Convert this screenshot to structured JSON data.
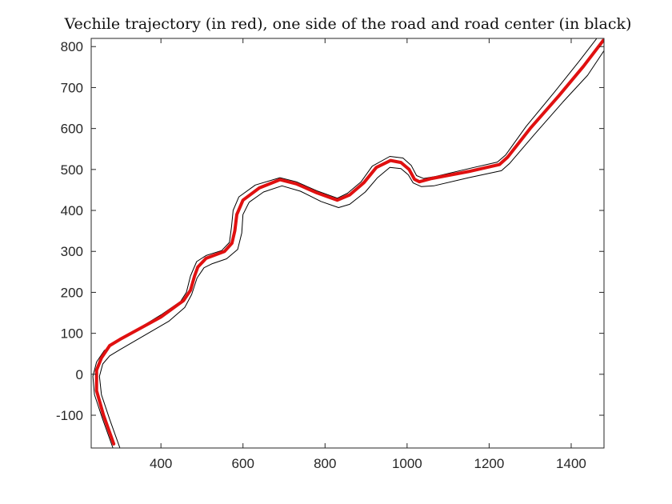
{
  "chart_data": {
    "type": "line",
    "title": "Vechile trajectory (in red), one side of the road and road center (in black)",
    "xlabel": "",
    "ylabel": "",
    "xlim": [
      230,
      1480
    ],
    "ylim": [
      -180,
      820
    ],
    "xticks": [
      400,
      600,
      800,
      1000,
      1200,
      1400
    ],
    "yticks": [
      -100,
      0,
      100,
      200,
      300,
      400,
      500,
      600,
      700,
      800
    ],
    "grid": false,
    "series": [
      {
        "color": "#e01010",
        "line_width": 4,
        "points": [
          [
            285,
            -170
          ],
          [
            260,
            -100
          ],
          [
            243,
            -40
          ],
          [
            243,
            10
          ],
          [
            255,
            40
          ],
          [
            275,
            70
          ],
          [
            300,
            85
          ],
          [
            400,
            140
          ],
          [
            455,
            180
          ],
          [
            472,
            205
          ],
          [
            482,
            240
          ],
          [
            490,
            262
          ],
          [
            510,
            283
          ],
          [
            555,
            300
          ],
          [
            573,
            320
          ],
          [
            580,
            350
          ],
          [
            585,
            390
          ],
          [
            600,
            425
          ],
          [
            640,
            455
          ],
          [
            690,
            475
          ],
          [
            730,
            465
          ],
          [
            780,
            443
          ],
          [
            830,
            425
          ],
          [
            860,
            438
          ],
          [
            895,
            468
          ],
          [
            925,
            505
          ],
          [
            960,
            522
          ],
          [
            985,
            517
          ],
          [
            1005,
            500
          ],
          [
            1018,
            476
          ],
          [
            1030,
            470
          ],
          [
            1060,
            478
          ],
          [
            1150,
            495
          ],
          [
            1225,
            512
          ],
          [
            1245,
            530
          ],
          [
            1300,
            600
          ],
          [
            1370,
            680
          ],
          [
            1430,
            752
          ],
          [
            1478,
            815
          ]
        ]
      },
      {
        "color": "#000000",
        "line_width": 1,
        "points": [
          [
            300,
            -180
          ],
          [
            275,
            -110
          ],
          [
            255,
            -50
          ],
          [
            250,
            -5
          ],
          [
            258,
            25
          ],
          [
            275,
            45
          ],
          [
            300,
            60
          ],
          [
            420,
            130
          ],
          [
            458,
            163
          ],
          [
            475,
            195
          ],
          [
            488,
            235
          ],
          [
            505,
            260
          ],
          [
            525,
            270
          ],
          [
            560,
            282
          ],
          [
            587,
            305
          ],
          [
            597,
            345
          ],
          [
            600,
            390
          ],
          [
            615,
            420
          ],
          [
            650,
            445
          ],
          [
            695,
            460
          ],
          [
            740,
            447
          ],
          [
            790,
            422
          ],
          [
            833,
            407
          ],
          [
            860,
            415
          ],
          [
            898,
            445
          ],
          [
            928,
            480
          ],
          [
            958,
            505
          ],
          [
            985,
            502
          ],
          [
            1003,
            487
          ],
          [
            1015,
            467
          ],
          [
            1035,
            458
          ],
          [
            1065,
            460
          ],
          [
            1150,
            480
          ],
          [
            1230,
            497
          ],
          [
            1250,
            515
          ],
          [
            1310,
            585
          ],
          [
            1380,
            665
          ],
          [
            1440,
            730
          ],
          [
            1480,
            790
          ]
        ]
      },
      {
        "color": "#000000",
        "line_width": 1,
        "points": [
          [
            283,
            -180
          ],
          [
            258,
            -110
          ],
          [
            238,
            -50
          ],
          [
            234,
            -5
          ],
          [
            243,
            30
          ],
          [
            262,
            58
          ],
          [
            285,
            75
          ],
          [
            400,
            145
          ],
          [
            448,
            178
          ],
          [
            462,
            200
          ],
          [
            472,
            240
          ],
          [
            487,
            275
          ],
          [
            510,
            290
          ],
          [
            548,
            302
          ],
          [
            567,
            322
          ],
          [
            572,
            360
          ],
          [
            576,
            400
          ],
          [
            590,
            433
          ],
          [
            630,
            462
          ],
          [
            690,
            480
          ],
          [
            730,
            470
          ],
          [
            780,
            448
          ],
          [
            830,
            430
          ],
          [
            855,
            442
          ],
          [
            888,
            470
          ],
          [
            915,
            508
          ],
          [
            958,
            532
          ],
          [
            990,
            528
          ],
          [
            1010,
            510
          ],
          [
            1023,
            485
          ],
          [
            1040,
            478
          ],
          [
            1070,
            483
          ],
          [
            1150,
            502
          ],
          [
            1220,
            518
          ],
          [
            1240,
            535
          ],
          [
            1290,
            605
          ],
          [
            1360,
            690
          ],
          [
            1420,
            765
          ],
          [
            1470,
            830
          ]
        ]
      }
    ]
  }
}
